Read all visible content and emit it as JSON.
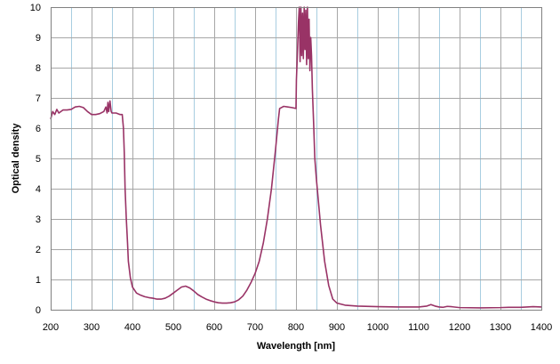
{
  "chart_data": {
    "type": "line",
    "title": "",
    "xlabel": "Wavelength [nm]",
    "ylabel": "Optical density",
    "xlim": [
      200,
      1400
    ],
    "ylim": [
      0,
      10
    ],
    "x_major_ticks": [
      200,
      300,
      400,
      500,
      600,
      700,
      800,
      900,
      1000,
      1100,
      1200,
      1300,
      1400
    ],
    "y_major_ticks": [
      0,
      1,
      2,
      3,
      4,
      5,
      6,
      7,
      8,
      9,
      10
    ],
    "grid": {
      "major": true,
      "minor_x_step": 50
    },
    "legend": "none",
    "colors": {
      "series": "#993366",
      "grid_major": "#a6a6a6",
      "grid_minor": "#a8cde0",
      "background": "#ffffff"
    },
    "series": [
      {
        "points": [
          [
            200,
            6.3
          ],
          [
            205,
            6.55
          ],
          [
            210,
            6.45
          ],
          [
            215,
            6.62
          ],
          [
            220,
            6.5
          ],
          [
            230,
            6.6
          ],
          [
            240,
            6.6
          ],
          [
            250,
            6.62
          ],
          [
            260,
            6.7
          ],
          [
            270,
            6.72
          ],
          [
            280,
            6.68
          ],
          [
            290,
            6.55
          ],
          [
            300,
            6.45
          ],
          [
            310,
            6.45
          ],
          [
            320,
            6.48
          ],
          [
            330,
            6.55
          ],
          [
            335,
            6.7
          ],
          [
            338,
            6.5
          ],
          [
            340,
            6.85
          ],
          [
            342,
            6.55
          ],
          [
            345,
            6.9
          ],
          [
            348,
            6.55
          ],
          [
            350,
            6.5
          ],
          [
            360,
            6.5
          ],
          [
            370,
            6.45
          ],
          [
            375,
            6.45
          ],
          [
            378,
            6.0
          ],
          [
            380,
            5.2
          ],
          [
            382,
            4.0
          ],
          [
            385,
            3.0
          ],
          [
            388,
            2.2
          ],
          [
            390,
            1.6
          ],
          [
            395,
            1.05
          ],
          [
            400,
            0.75
          ],
          [
            410,
            0.55
          ],
          [
            420,
            0.48
          ],
          [
            430,
            0.43
          ],
          [
            440,
            0.4
          ],
          [
            450,
            0.38
          ],
          [
            460,
            0.35
          ],
          [
            470,
            0.35
          ],
          [
            480,
            0.38
          ],
          [
            490,
            0.45
          ],
          [
            500,
            0.55
          ],
          [
            510,
            0.65
          ],
          [
            520,
            0.75
          ],
          [
            530,
            0.78
          ],
          [
            540,
            0.72
          ],
          [
            550,
            0.62
          ],
          [
            560,
            0.5
          ],
          [
            570,
            0.42
          ],
          [
            580,
            0.35
          ],
          [
            590,
            0.3
          ],
          [
            600,
            0.26
          ],
          [
            610,
            0.23
          ],
          [
            620,
            0.22
          ],
          [
            630,
            0.22
          ],
          [
            640,
            0.23
          ],
          [
            650,
            0.26
          ],
          [
            660,
            0.33
          ],
          [
            670,
            0.45
          ],
          [
            680,
            0.65
          ],
          [
            690,
            0.9
          ],
          [
            700,
            1.2
          ],
          [
            710,
            1.6
          ],
          [
            720,
            2.2
          ],
          [
            730,
            3.0
          ],
          [
            740,
            4.0
          ],
          [
            750,
            5.3
          ],
          [
            757,
            6.3
          ],
          [
            760,
            6.65
          ],
          [
            770,
            6.72
          ],
          [
            780,
            6.7
          ],
          [
            790,
            6.68
          ],
          [
            800,
            6.65
          ],
          [
            801,
            7.6
          ],
          [
            803,
            8.3
          ],
          [
            806,
            9.5
          ],
          [
            808,
            10.0
          ],
          [
            810,
            8.2
          ],
          [
            812,
            10.0
          ],
          [
            814,
            8.4
          ],
          [
            816,
            9.8
          ],
          [
            818,
            8.3
          ],
          [
            820,
            10.0
          ],
          [
            822,
            8.6
          ],
          [
            824,
            9.9
          ],
          [
            826,
            8.1
          ],
          [
            828,
            10.0
          ],
          [
            830,
            8.3
          ],
          [
            832,
            9.6
          ],
          [
            834,
            7.9
          ],
          [
            836,
            9.0
          ],
          [
            838,
            8.4
          ],
          [
            840,
            7.3
          ],
          [
            843,
            6.2
          ],
          [
            846,
            5.0
          ],
          [
            850,
            4.3
          ],
          [
            860,
            2.8
          ],
          [
            870,
            1.6
          ],
          [
            880,
            0.8
          ],
          [
            890,
            0.35
          ],
          [
            900,
            0.22
          ],
          [
            920,
            0.15
          ],
          [
            950,
            0.12
          ],
          [
            1000,
            0.1
          ],
          [
            1050,
            0.09
          ],
          [
            1100,
            0.09
          ],
          [
            1120,
            0.12
          ],
          [
            1130,
            0.17
          ],
          [
            1140,
            0.12
          ],
          [
            1150,
            0.09
          ],
          [
            1160,
            0.08
          ],
          [
            1170,
            0.11
          ],
          [
            1180,
            0.1
          ],
          [
            1200,
            0.07
          ],
          [
            1250,
            0.06
          ],
          [
            1300,
            0.07
          ],
          [
            1320,
            0.08
          ],
          [
            1350,
            0.08
          ],
          [
            1380,
            0.1
          ],
          [
            1400,
            0.09
          ]
        ]
      }
    ]
  }
}
